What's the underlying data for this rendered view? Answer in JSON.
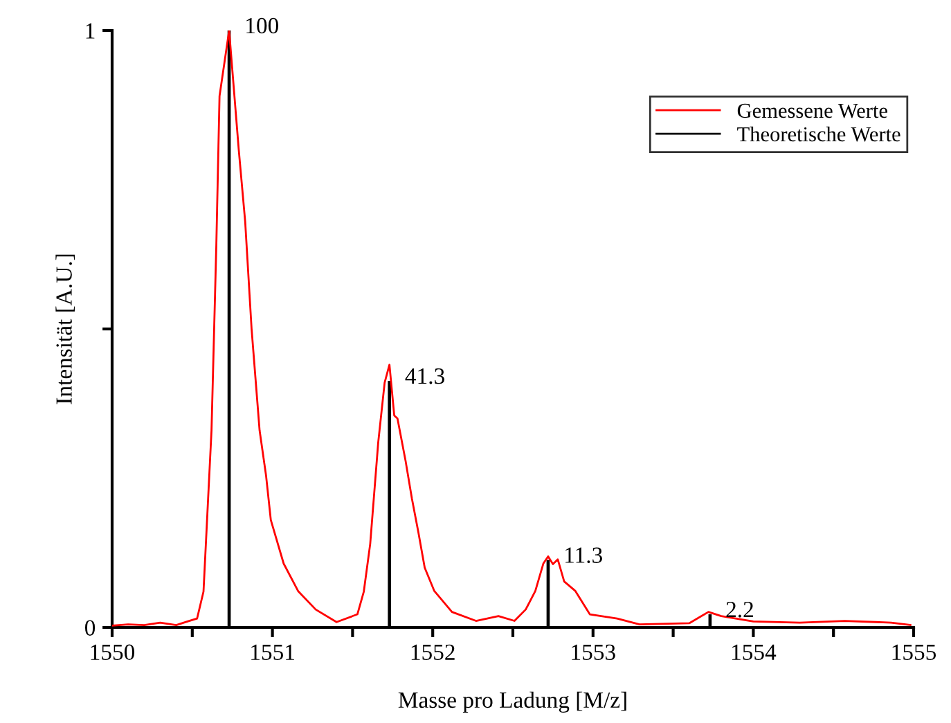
{
  "chart_data": {
    "type": "line",
    "xlabel": "Masse pro Ladung [M/z]",
    "ylabel": "Intensität [A.U.]",
    "xlim": [
      1550,
      1555
    ],
    "xticks": [
      1550,
      {
        "value": 1550.5,
        "label": null
      },
      1551,
      {
        "value": 1551.5,
        "label": null
      },
      1552,
      {
        "value": 1552.5,
        "label": null
      },
      1553,
      {
        "value": 1553.5,
        "label": null
      },
      1554,
      {
        "value": 1554.5,
        "label": null
      },
      1555
    ],
    "ylim": [
      0,
      1
    ],
    "yticks": [
      0,
      {
        "value": 0.5,
        "label": null
      },
      1
    ],
    "grid": false,
    "legend": "top right",
    "marker": "none",
    "line_style": "solid",
    "series": [
      {
        "name": "Gemessene Werte",
        "color": "#ff0000",
        "x": [
          1550.0,
          1550.1,
          1550.2,
          1550.3,
          1550.4,
          1550.47,
          1550.53,
          1550.57,
          1550.62,
          1550.65,
          1550.67,
          1550.73,
          1550.79,
          1550.83,
          1550.87,
          1550.92,
          1550.96,
          1550.99,
          1551.07,
          1551.16,
          1551.27,
          1551.4,
          1551.53,
          1551.57,
          1551.61,
          1551.66,
          1551.7,
          1551.73,
          1551.76,
          1551.78,
          1551.83,
          1551.87,
          1551.91,
          1551.95,
          1552.01,
          1552.12,
          1552.27,
          1552.41,
          1552.51,
          1552.58,
          1552.64,
          1552.69,
          1552.72,
          1552.75,
          1552.78,
          1552.82,
          1552.89,
          1552.98,
          1553.15,
          1553.29,
          1553.6,
          1553.72,
          1553.8,
          1554.0,
          1554.29,
          1554.57,
          1554.86,
          1554.98
        ],
        "values": [
          0.003,
          0.005,
          0.004,
          0.008,
          0.004,
          0.01,
          0.015,
          0.06,
          0.33,
          0.64,
          0.89,
          1.0,
          0.8,
          0.68,
          0.5,
          0.33,
          0.255,
          0.18,
          0.107,
          0.061,
          0.03,
          0.009,
          0.022,
          0.06,
          0.14,
          0.31,
          0.41,
          0.44,
          0.355,
          0.35,
          0.28,
          0.216,
          0.16,
          0.1,
          0.061,
          0.026,
          0.011,
          0.019,
          0.011,
          0.03,
          0.061,
          0.107,
          0.119,
          0.106,
          0.114,
          0.077,
          0.061,
          0.022,
          0.015,
          0.005,
          0.007,
          0.026,
          0.019,
          0.01,
          0.008,
          0.011,
          0.008,
          0.004
        ]
      },
      {
        "name": "Theoretische Werte",
        "type": "bar",
        "color": "#000000",
        "x": [
          1550.73,
          1551.73,
          1552.72,
          1553.73
        ],
        "values": [
          1.0,
          0.413,
          0.113,
          0.022
        ]
      }
    ],
    "annotations": [
      {
        "text": "100",
        "x": 1550.73,
        "y": 1.0
      },
      {
        "text": "41.3",
        "x": 1551.73,
        "y": 0.413
      },
      {
        "text": "11.3",
        "x": 1552.72,
        "y": 0.113
      },
      {
        "text": "2.2",
        "x": 1553.73,
        "y": 0.022
      }
    ]
  }
}
